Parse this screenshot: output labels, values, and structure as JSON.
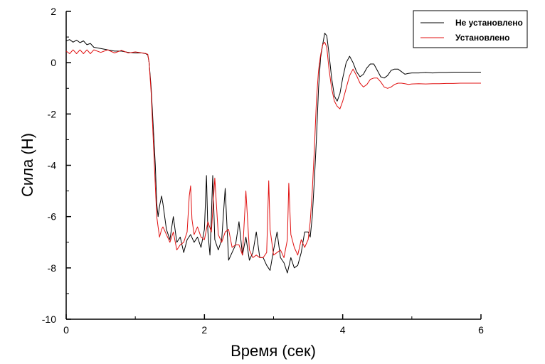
{
  "chart_data": {
    "type": "line",
    "title": "",
    "xlabel": "Время (сек)",
    "ylabel": "Сила (Н)",
    "xlim": [
      0,
      6
    ],
    "ylim": [
      -10,
      2
    ],
    "x_ticks": [
      0,
      2,
      4,
      6
    ],
    "y_ticks": [
      2,
      0,
      -2,
      -4,
      -6,
      -8,
      -10
    ],
    "x_tick_labels": [
      "0",
      "2",
      "4",
      "6"
    ],
    "y_tick_labels": [
      "2",
      "0",
      "-2",
      "-4",
      "-6",
      "-8",
      "-10"
    ],
    "grid": false,
    "legend_position": "top-right",
    "series": [
      {
        "name": "Не установлено",
        "color": "#000000",
        "x": [
          0,
          0.05,
          0.1,
          0.15,
          0.2,
          0.25,
          0.3,
          0.35,
          0.4,
          0.5,
          0.6,
          0.7,
          0.8,
          0.9,
          1.0,
          1.1,
          1.15,
          1.18,
          1.2,
          1.23,
          1.26,
          1.29,
          1.31,
          1.33,
          1.35,
          1.38,
          1.4,
          1.45,
          1.5,
          1.55,
          1.6,
          1.65,
          1.7,
          1.75,
          1.8,
          1.85,
          1.9,
          1.95,
          2.0,
          2.03,
          2.05,
          2.08,
          2.1,
          2.12,
          2.15,
          2.2,
          2.25,
          2.3,
          2.35,
          2.4,
          2.45,
          2.5,
          2.55,
          2.6,
          2.65,
          2.7,
          2.75,
          2.8,
          2.85,
          2.9,
          2.95,
          3.0,
          3.05,
          3.1,
          3.15,
          3.2,
          3.25,
          3.3,
          3.35,
          3.4,
          3.45,
          3.5,
          3.53,
          3.56,
          3.59,
          3.62,
          3.65,
          3.68,
          3.71,
          3.74,
          3.77,
          3.8,
          3.84,
          3.88,
          3.92,
          3.96,
          4.0,
          4.05,
          4.1,
          4.15,
          4.2,
          4.25,
          4.3,
          4.35,
          4.4,
          4.45,
          4.5,
          4.55,
          4.6,
          4.65,
          4.7,
          4.75,
          4.8,
          4.85,
          4.9,
          4.95,
          5.0,
          5.1,
          5.2,
          5.3,
          5.4,
          5.5,
          5.6,
          5.7,
          5.8,
          5.9,
          6.0
        ],
        "values": [
          0.85,
          0.9,
          0.8,
          0.88,
          0.78,
          0.85,
          0.7,
          0.75,
          0.6,
          0.55,
          0.5,
          0.45,
          0.45,
          0.4,
          0.38,
          0.38,
          0.35,
          0.3,
          0.0,
          -1.0,
          -2.5,
          -4.0,
          -5.5,
          -6.0,
          -5.6,
          -5.2,
          -5.5,
          -6.5,
          -6.9,
          -6.0,
          -7.0,
          -6.8,
          -7.4,
          -6.9,
          -6.7,
          -7.0,
          -6.8,
          -7.2,
          -6.5,
          -4.4,
          -6.6,
          -7.5,
          -6.0,
          -4.4,
          -6.9,
          -7.3,
          -6.9,
          -4.9,
          -7.7,
          -7.4,
          -7.1,
          -6.2,
          -7.5,
          -6.8,
          -7.7,
          -7.4,
          -6.6,
          -7.6,
          -7.6,
          -7.9,
          -8.1,
          -7.3,
          -6.6,
          -7.6,
          -7.8,
          -8.2,
          -7.6,
          -8.0,
          -7.9,
          -7.4,
          -6.6,
          -6.6,
          -6.8,
          -6.0,
          -4.6,
          -3.0,
          -1.0,
          0.2,
          0.7,
          1.15,
          1.05,
          0.4,
          -0.6,
          -1.3,
          -1.5,
          -1.2,
          -0.6,
          0.0,
          0.25,
          0.0,
          -0.35,
          -0.55,
          -0.45,
          -0.2,
          -0.05,
          -0.05,
          -0.3,
          -0.55,
          -0.6,
          -0.5,
          -0.3,
          -0.25,
          -0.25,
          -0.35,
          -0.45,
          -0.42,
          -0.4,
          -0.4,
          -0.38,
          -0.4,
          -0.38,
          -0.38,
          -0.37,
          -0.37,
          -0.37,
          -0.37,
          -0.37
        ]
      },
      {
        "name": "Установлено",
        "color": "#e01010",
        "x": [
          0,
          0.05,
          0.1,
          0.15,
          0.2,
          0.25,
          0.3,
          0.35,
          0.4,
          0.5,
          0.6,
          0.7,
          0.8,
          0.9,
          1.0,
          1.1,
          1.15,
          1.18,
          1.2,
          1.23,
          1.26,
          1.29,
          1.31,
          1.33,
          1.35,
          1.38,
          1.4,
          1.45,
          1.5,
          1.55,
          1.6,
          1.65,
          1.7,
          1.75,
          1.78,
          1.8,
          1.82,
          1.85,
          1.9,
          1.95,
          2.0,
          2.05,
          2.1,
          2.15,
          2.2,
          2.25,
          2.3,
          2.35,
          2.4,
          2.45,
          2.5,
          2.55,
          2.6,
          2.65,
          2.7,
          2.75,
          2.8,
          2.85,
          2.9,
          2.93,
          2.95,
          3.0,
          3.05,
          3.1,
          3.15,
          3.2,
          3.22,
          3.25,
          3.3,
          3.35,
          3.4,
          3.45,
          3.5,
          3.53,
          3.56,
          3.59,
          3.62,
          3.65,
          3.68,
          3.71,
          3.74,
          3.77,
          3.8,
          3.84,
          3.88,
          3.92,
          3.96,
          4.0,
          4.05,
          4.1,
          4.15,
          4.2,
          4.25,
          4.3,
          4.35,
          4.4,
          4.45,
          4.5,
          4.55,
          4.6,
          4.65,
          4.7,
          4.75,
          4.8,
          4.85,
          4.9,
          4.95,
          5.0,
          5.1,
          5.2,
          5.3,
          5.4,
          5.5,
          5.6,
          5.7,
          5.8,
          5.9,
          6.0
        ],
        "values": [
          0.45,
          0.35,
          0.5,
          0.35,
          0.5,
          0.35,
          0.5,
          0.35,
          0.5,
          0.4,
          0.5,
          0.38,
          0.48,
          0.38,
          0.42,
          0.38,
          0.36,
          0.33,
          0.0,
          -1.2,
          -3.0,
          -4.8,
          -6.0,
          -6.4,
          -6.8,
          -6.5,
          -6.4,
          -6.7,
          -7.0,
          -6.6,
          -7.3,
          -7.1,
          -7.0,
          -6.6,
          -5.2,
          -4.8,
          -6.1,
          -6.7,
          -6.4,
          -6.8,
          -6.9,
          -6.2,
          -6.6,
          -4.5,
          -6.7,
          -7.0,
          -6.6,
          -6.5,
          -7.2,
          -7.1,
          -7.1,
          -7.5,
          -5.0,
          -7.3,
          -7.6,
          -7.5,
          -7.6,
          -7.6,
          -7.4,
          -4.6,
          -6.5,
          -7.5,
          -7.4,
          -7.3,
          -7.6,
          -6.9,
          -4.7,
          -6.7,
          -7.2,
          -7.5,
          -6.9,
          -7.2,
          -6.9,
          -6.2,
          -5.0,
          -3.4,
          -1.5,
          -0.3,
          0.3,
          0.7,
          0.8,
          0.6,
          -0.2,
          -1.0,
          -1.5,
          -1.7,
          -1.8,
          -1.5,
          -1.0,
          -0.5,
          -0.25,
          -0.5,
          -0.8,
          -0.95,
          -0.85,
          -0.65,
          -0.6,
          -0.6,
          -0.75,
          -0.95,
          -1.0,
          -0.95,
          -0.85,
          -0.8,
          -0.8,
          -0.82,
          -0.85,
          -0.83,
          -0.82,
          -0.83,
          -0.82,
          -0.82,
          -0.81,
          -0.81,
          -0.8,
          -0.8,
          -0.8,
          -0.8
        ]
      }
    ]
  }
}
